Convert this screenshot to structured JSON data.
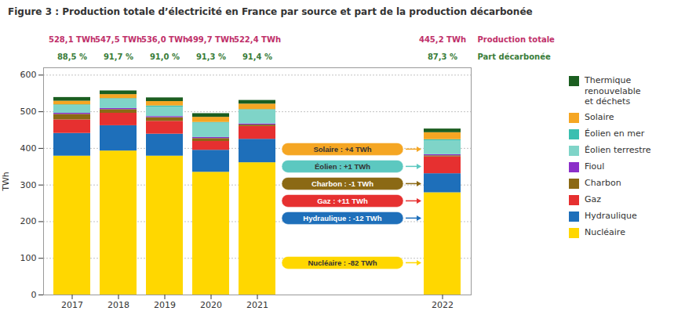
{
  "chart_data": {
    "type": "bar",
    "stacked": true,
    "title": "Figure 3 : Production totale d’électricité en France par source et part de la production décarbonée",
    "categories": [
      "2017",
      "2018",
      "2019",
      "2020",
      "2021",
      "2022"
    ],
    "ylabel": "TWh",
    "ylim": [
      0,
      620
    ],
    "yticks": [
      0,
      100,
      200,
      300,
      400,
      500,
      600
    ],
    "grid": true,
    "legend": "right",
    "series": [
      {
        "name": "Nucléaire",
        "color": "#FFD700",
        "values": [
          379,
          393,
          379,
          335,
          361,
          279
        ]
      },
      {
        "name": "Hydraulique",
        "color": "#1E6FBA",
        "values": [
          62,
          69,
          60,
          60,
          64,
          52
        ]
      },
      {
        "name": "Gaz",
        "color": "#E63030",
        "values": [
          37,
          34,
          35,
          24,
          35,
          46
        ]
      },
      {
        "name": "Charbon",
        "color": "#8B6914",
        "values": [
          15,
          10,
          10,
          8,
          4,
          3
        ]
      },
      {
        "name": "Fioul",
        "color": "#8B2FC9",
        "values": [
          3,
          3,
          3,
          3,
          3,
          3
        ]
      },
      {
        "name": "Éolien terrestre",
        "color": "#7FD4C8",
        "values": [
          21,
          25,
          26,
          39,
          37,
          38
        ]
      },
      {
        "name": "Éolien en mer",
        "color": "#3ABFB0",
        "values": [
          2,
          2,
          3,
          2,
          2,
          3
        ]
      },
      {
        "name": "Solaire",
        "color": "#F5A623",
        "values": [
          10,
          11,
          12,
          14,
          15,
          19
        ]
      },
      {
        "name": "Thermique\nrenouvelable\net déchets",
        "color": "#1B5E20",
        "values": [
          10,
          10,
          10,
          10,
          10,
          10
        ]
      }
    ],
    "rows": [
      {
        "name": "Production totale",
        "color": "#C0306A",
        "values": [
          528.1,
          547.5,
          536.0,
          499.7,
          522.4,
          445.2
        ],
        "value_labels": [
          "528,1 TWh",
          "547,5 TWh",
          "536,0 TWh",
          "499,7 TWh",
          "522,4 TWh",
          "445,2 TWh"
        ]
      },
      {
        "name": "Part décarbonée",
        "color": "#3A7D3A",
        "values": [
          88.5,
          91.7,
          91.0,
          91.3,
          91.4,
          87.3
        ],
        "value_labels": [
          "88,5 %",
          "91,7 %",
          "91,0 %",
          "91,3 %",
          "91,4 %",
          "87,3 %"
        ]
      }
    ],
    "annotations": [
      {
        "text": "Solaire : +4 TWh",
        "color": "#F5A623"
      },
      {
        "text": "Éolien : +1 TWh",
        "color": "#5CC8C0"
      },
      {
        "text": "Charbon : -1 TWh",
        "color": "#8B6914"
      },
      {
        "text": "Gaz : +11 TWh",
        "color": "#E63030"
      },
      {
        "text": "Hydraulique : -12 TWh",
        "color": "#1E6FBA"
      },
      {
        "text": "Nucléaire : -82 TWh",
        "color": "#FFD700"
      }
    ]
  }
}
